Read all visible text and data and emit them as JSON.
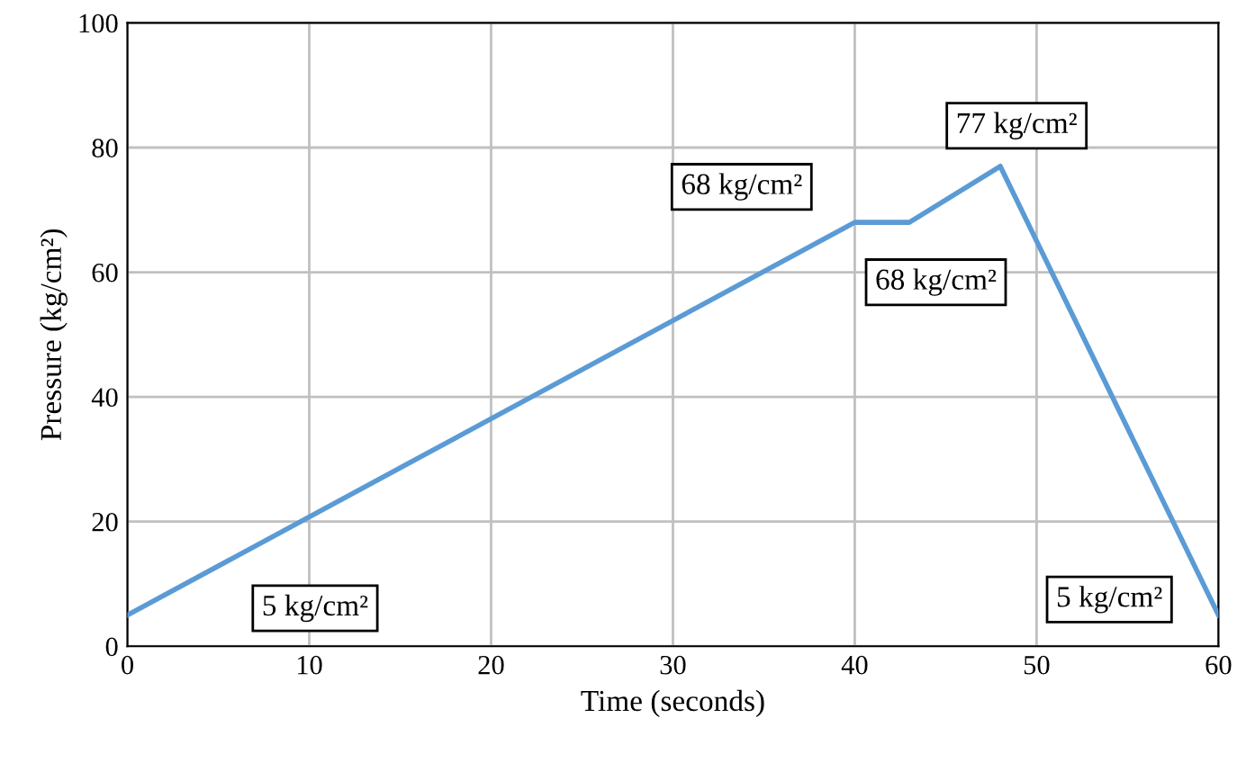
{
  "chart_data": {
    "type": "line",
    "xlabel": "Time (seconds)",
    "ylabel": "Pressure (kg/cm²)",
    "x": [
      0,
      40,
      43,
      48,
      60
    ],
    "series": [
      {
        "color": "#5b9bd5",
        "values": [
          5,
          68,
          68,
          77,
          5
        ]
      }
    ],
    "xlim": [
      0,
      60
    ],
    "xticks": [
      0,
      10,
      20,
      30,
      40,
      50,
      60
    ],
    "ylim": [
      0,
      100
    ],
    "yticks": [
      0,
      20,
      40,
      60,
      80,
      100
    ],
    "grid": true,
    "marker": "none",
    "line_style": "solid",
    "annotations": [
      "5 kg/cm²",
      "68 kg/cm²",
      "68 kg/cm²",
      "77 kg/cm²",
      "5 kg/cm²"
    ]
  }
}
